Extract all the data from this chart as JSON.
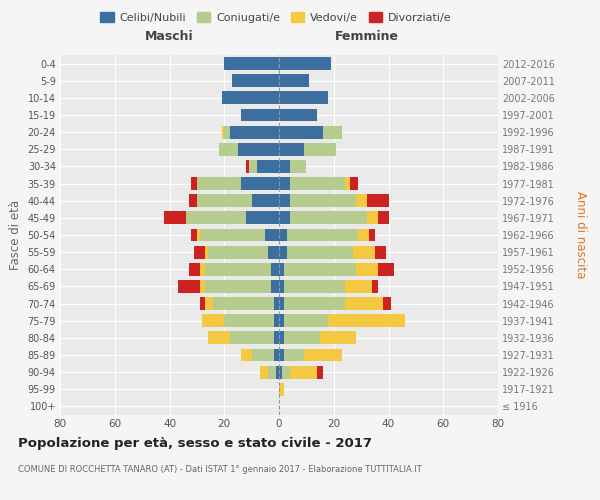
{
  "age_groups": [
    "100+",
    "95-99",
    "90-94",
    "85-89",
    "80-84",
    "75-79",
    "70-74",
    "65-69",
    "60-64",
    "55-59",
    "50-54",
    "45-49",
    "40-44",
    "35-39",
    "30-34",
    "25-29",
    "20-24",
    "15-19",
    "10-14",
    "5-9",
    "0-4"
  ],
  "birth_years": [
    "≤ 1916",
    "1917-1921",
    "1922-1926",
    "1927-1931",
    "1932-1936",
    "1937-1941",
    "1942-1946",
    "1947-1951",
    "1952-1956",
    "1957-1961",
    "1962-1966",
    "1967-1971",
    "1972-1976",
    "1977-1981",
    "1982-1986",
    "1987-1991",
    "1992-1996",
    "1997-2001",
    "2002-2006",
    "2007-2011",
    "2012-2016"
  ],
  "males": {
    "celibi": [
      0,
      0,
      1,
      2,
      2,
      2,
      2,
      3,
      3,
      4,
      5,
      12,
      10,
      14,
      8,
      15,
      18,
      14,
      21,
      17,
      20
    ],
    "coniugati": [
      0,
      0,
      3,
      8,
      16,
      18,
      22,
      24,
      24,
      22,
      24,
      22,
      20,
      16,
      3,
      7,
      2,
      0,
      0,
      0,
      0
    ],
    "vedovi": [
      0,
      0,
      3,
      4,
      8,
      8,
      3,
      2,
      2,
      1,
      1,
      0,
      0,
      0,
      0,
      0,
      1,
      0,
      0,
      0,
      0
    ],
    "divorziati": [
      0,
      0,
      0,
      0,
      0,
      0,
      2,
      8,
      4,
      4,
      2,
      8,
      3,
      2,
      1,
      0,
      0,
      0,
      0,
      0,
      0
    ]
  },
  "females": {
    "nubili": [
      0,
      0,
      1,
      2,
      2,
      2,
      2,
      2,
      2,
      3,
      3,
      4,
      4,
      4,
      4,
      9,
      16,
      14,
      18,
      11,
      19
    ],
    "coniugate": [
      0,
      0,
      3,
      7,
      13,
      16,
      22,
      22,
      26,
      24,
      26,
      28,
      24,
      20,
      6,
      12,
      7,
      0,
      0,
      0,
      0
    ],
    "vedove": [
      0,
      2,
      10,
      14,
      13,
      28,
      14,
      10,
      8,
      8,
      4,
      4,
      4,
      2,
      0,
      0,
      0,
      0,
      0,
      0,
      0
    ],
    "divorziate": [
      0,
      0,
      2,
      0,
      0,
      0,
      3,
      2,
      6,
      4,
      2,
      4,
      8,
      3,
      0,
      0,
      0,
      0,
      0,
      0,
      0
    ]
  },
  "colors": {
    "celibi": "#3c6fa0",
    "coniugati": "#b5cc8e",
    "vedovi": "#f5c842",
    "divorziati": "#cc2222"
  },
  "xlim": 80,
  "title": "Popolazione per età, sesso e stato civile - 2017",
  "subtitle": "COMUNE DI ROCCHETTA TANARO (AT) - Dati ISTAT 1° gennaio 2017 - Elaborazione TUTTITALIA.IT",
  "ylabel_left": "Fasce di età",
  "ylabel_right": "Anni di nascita",
  "xlabel_left": "Maschi",
  "xlabel_right": "Femmine",
  "legend_labels": [
    "Celibi/Nubili",
    "Coniugati/e",
    "Vedovi/e",
    "Divorziati/e"
  ],
  "bg_color": "#f5f5f5",
  "plot_bg": "#eaeaea"
}
